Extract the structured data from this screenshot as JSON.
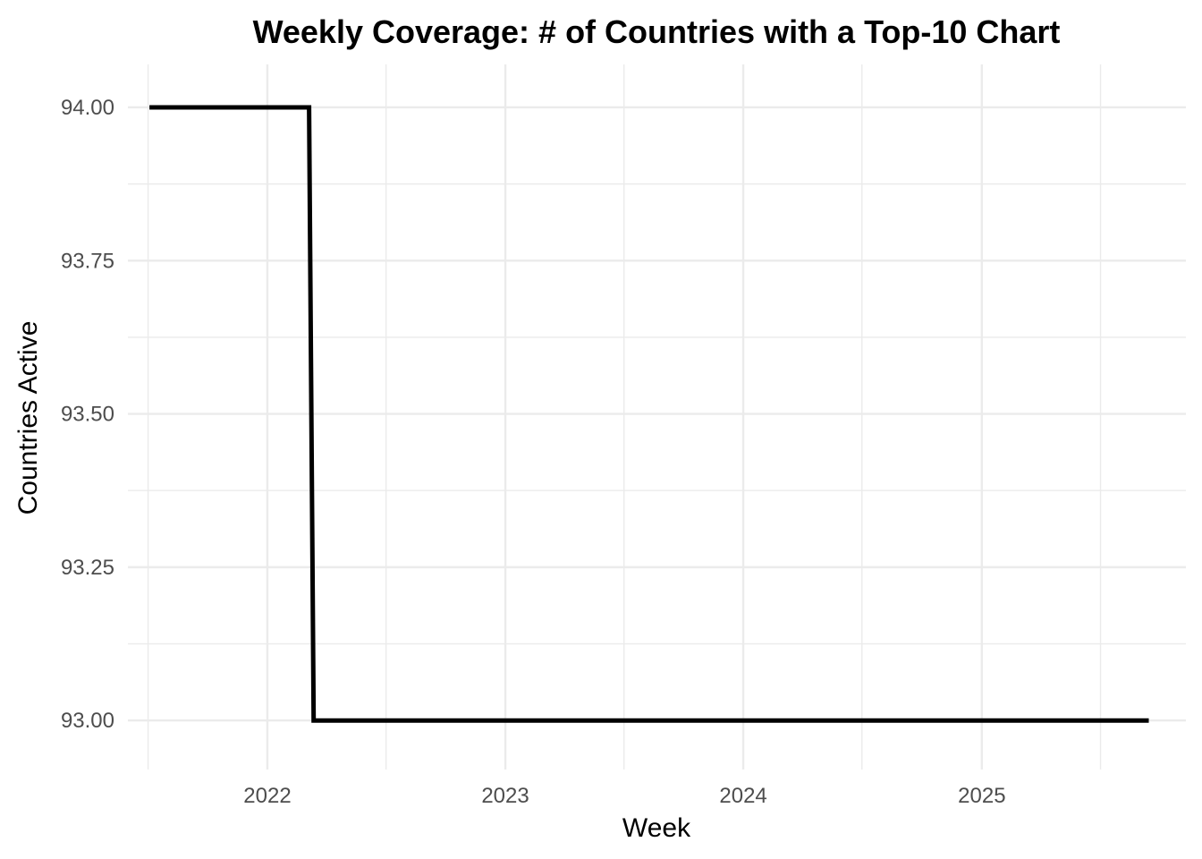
{
  "chart_data": {
    "type": "line",
    "title": "Weekly Coverage: # of Countries with a Top-10 Chart",
    "xlabel": "Week",
    "ylabel": "Countries Active",
    "x_type": "date",
    "xlim": [
      "2021-06-01",
      "2025-11-10"
    ],
    "ylim": [
      92.92,
      94.07
    ],
    "x_ticks": [
      {
        "value": "2022-01-01",
        "label": "2022"
      },
      {
        "value": "2023-01-01",
        "label": "2023"
      },
      {
        "value": "2024-01-01",
        "label": "2024"
      },
      {
        "value": "2025-01-01",
        "label": "2025"
      }
    ],
    "x_minor_ticks": [
      "2021-07-02",
      "2022-07-02",
      "2023-07-02",
      "2024-07-01",
      "2025-07-02"
    ],
    "y_ticks": [
      {
        "value": 93.0,
        "label": "93.00"
      },
      {
        "value": 93.25,
        "label": "93.25"
      },
      {
        "value": 93.5,
        "label": "93.50"
      },
      {
        "value": 93.75,
        "label": "93.75"
      },
      {
        "value": 94.0,
        "label": "94.00"
      }
    ],
    "y_minor_ticks": [
      93.125,
      93.375,
      93.625,
      93.875
    ],
    "grid": true,
    "legend": "none",
    "series": [
      {
        "color": "#000000",
        "step": true,
        "points": [
          {
            "x": "2021-07-04",
            "y": 94
          },
          {
            "x": "2022-03-06",
            "y": 94
          },
          {
            "x": "2022-03-13",
            "y": 93
          },
          {
            "x": "2025-09-14",
            "y": 93
          }
        ]
      }
    ]
  }
}
